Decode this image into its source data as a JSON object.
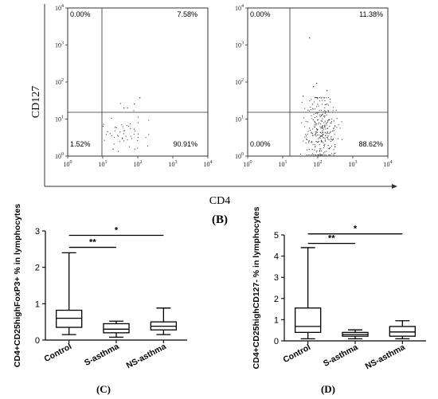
{
  "flow_panel": {
    "panel_label": "(B)",
    "y_label": "CD127",
    "x_label": "CD4",
    "tick_labels": [
      "10^0",
      "10^1",
      "10^2",
      "10^3",
      "10^4"
    ],
    "plots": [
      {
        "quadrants": {
          "top_left": "0.00%",
          "top_right": "7.58%",
          "bottom_left": "1.52%",
          "bottom_right": "90.91%"
        }
      },
      {
        "quadrants": {
          "top_left": "0.00%",
          "top_right": "11.38%",
          "bottom_left": "0.00%",
          "bottom_right": "88.62%"
        }
      }
    ]
  },
  "chart_data": [
    {
      "type": "box",
      "panel_label": "(C)",
      "ylabel": "CD4+CD25highFoxP3+ % in lymphocytes",
      "ylim": [
        0,
        3
      ],
      "yticks": [
        0,
        1,
        2,
        3
      ],
      "categories": [
        "Control",
        "S-asthma",
        "NS-asthma"
      ],
      "boxes": [
        {
          "min": 0.15,
          "q1": 0.35,
          "median": 0.6,
          "q3": 0.82,
          "max": 2.4
        },
        {
          "min": 0.08,
          "q1": 0.2,
          "median": 0.3,
          "q3": 0.45,
          "max": 0.52
        },
        {
          "min": 0.15,
          "q1": 0.28,
          "median": 0.38,
          "q3": 0.5,
          "max": 0.88
        }
      ],
      "significance": [
        {
          "from": "Control",
          "to": "S-asthma",
          "label": "**",
          "y": 2.55
        },
        {
          "from": "Control",
          "to": "NS-asthma",
          "label": "*",
          "y": 2.88
        }
      ]
    },
    {
      "type": "box",
      "panel_label": "(D)",
      "ylabel": "CD4+CD25highCD127- % in lymphocytes",
      "ylim": [
        0,
        5
      ],
      "yticks": [
        0,
        1,
        2,
        3,
        4,
        5
      ],
      "categories": [
        "Control",
        "S-asthma",
        "NS-asthma"
      ],
      "boxes": [
        {
          "min": 0.1,
          "q1": 0.4,
          "median": 0.68,
          "q3": 1.55,
          "max": 4.4
        },
        {
          "min": 0.1,
          "q1": 0.22,
          "median": 0.3,
          "q3": 0.4,
          "max": 0.52
        },
        {
          "min": 0.1,
          "q1": 0.22,
          "median": 0.42,
          "q3": 0.68,
          "max": 0.95
        }
      ],
      "significance": [
        {
          "from": "Control",
          "to": "S-asthma",
          "label": "**",
          "y": 4.6
        },
        {
          "from": "Control",
          "to": "NS-asthma",
          "label": "*",
          "y": 5.05
        }
      ]
    }
  ]
}
